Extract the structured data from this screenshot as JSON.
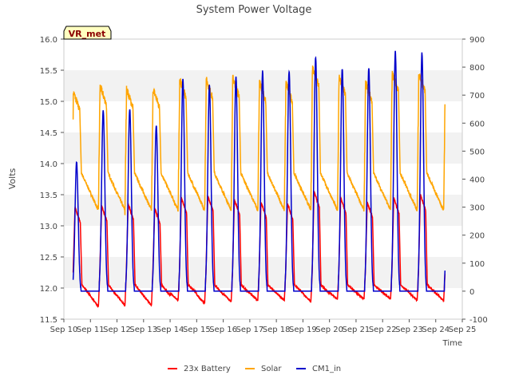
{
  "chart_data": {
    "type": "line",
    "title": "System Power Voltage",
    "xlabel": "Time",
    "ylabel": "Volts",
    "ylim": [
      11.5,
      16.0
    ],
    "y2lim": [
      -100,
      900
    ],
    "xlim": [
      10,
      25
    ],
    "yticks": [
      "11.5",
      "12.0",
      "12.5",
      "13.0",
      "13.5",
      "14.0",
      "14.5",
      "15.0",
      "15.5",
      "16.0"
    ],
    "y2ticks": [
      "-100",
      "0",
      "100",
      "200",
      "300",
      "400",
      "500",
      "600",
      "700",
      "800",
      "900"
    ],
    "xticks": [
      "Sep 10",
      "Sep 11",
      "Sep 12",
      "Sep 13",
      "Sep 14",
      "Sep 15",
      "Sep 16",
      "Sep 17",
      "Sep 18",
      "Sep 19",
      "Sep 20",
      "Sep 21",
      "Sep 22",
      "Sep 23",
      "Sep 24",
      "Sep 25"
    ],
    "annotation": "VR_met",
    "legend_position": "bottom",
    "data_start": 10.35,
    "data_end": 24.35,
    "series": [
      {
        "name": "23x Battery",
        "axis": "left",
        "color": "#ff0000",
        "night": 11.95,
        "night_low": [
          11.72,
          11.7,
          11.72,
          11.72,
          11.8,
          11.75,
          11.78,
          11.8,
          11.8,
          11.78,
          11.82,
          11.82,
          11.82,
          11.8
        ],
        "peaks": [
          13.3,
          13.32,
          13.35,
          13.28,
          13.45,
          13.48,
          13.42,
          13.38,
          13.35,
          13.55,
          13.45,
          13.38,
          13.45,
          13.5
        ]
      },
      {
        "name": "Solar",
        "axis": "left",
        "color": "#ffa500",
        "night": 13.6,
        "peaks": [
          15.15,
          15.25,
          15.2,
          15.2,
          15.35,
          15.35,
          15.38,
          15.3,
          15.3,
          15.55,
          15.4,
          15.3,
          15.45,
          15.45
        ],
        "min": 13.25
      },
      {
        "name": "CM1_in",
        "axis": "right",
        "color": "#0000cc",
        "night": 0,
        "peaks": [
          460,
          645,
          650,
          590,
          755,
          735,
          765,
          785,
          785,
          835,
          795,
          795,
          855,
          850
        ]
      }
    ]
  }
}
